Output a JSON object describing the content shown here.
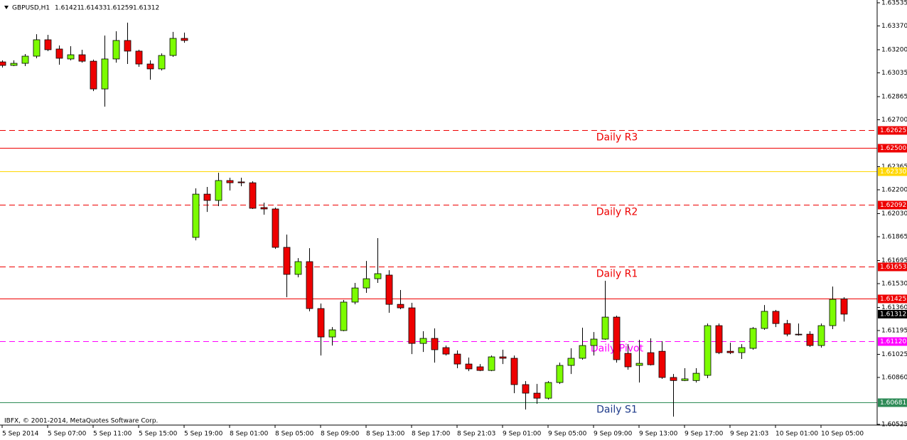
{
  "chart_data": {
    "type": "candlestick",
    "symbol": "GBPUSD,H1",
    "copyright": "IBFX, © 2001-2014, MetaQuotes Software Corp.",
    "categories": [
      "5 Sep 2014",
      null,
      null,
      null,
      "5 Sep 07:00",
      null,
      null,
      null,
      "5 Sep 11:00",
      null,
      null,
      null,
      "5 Sep 15:00",
      null,
      null,
      null,
      "5 Sep 19:00",
      null,
      null,
      null,
      "8 Sep 01:00",
      null,
      null,
      null,
      "8 Sep 05:00",
      null,
      null,
      null,
      "8 Sep 09:00",
      null,
      null,
      null,
      "8 Sep 13:00",
      null,
      null,
      null,
      "8 Sep 17:00",
      null,
      null,
      null,
      "8 Sep 21:03",
      null,
      null,
      null,
      "9 Sep 01:00",
      null,
      null,
      null,
      "9 Sep 05:00",
      null,
      null,
      null,
      "9 Sep 09:00",
      null,
      null,
      null,
      "9 Sep 13:00",
      null,
      null,
      null,
      "9 Sep 17:00",
      null,
      null,
      null,
      "9 Sep 21:03",
      null,
      null,
      null,
      "10 Sep 01:00",
      null,
      null,
      null,
      "10 Sep 05:00",
      null,
      null
    ],
    "open": [
      1.63113,
      1.63088,
      1.63103,
      1.63154,
      1.63271,
      1.63205,
      1.63134,
      1.63164,
      1.63118,
      1.6292,
      1.63134,
      1.63266,
      1.6319,
      1.63098,
      1.63063,
      1.63159,
      1.63281,
      1.6186,
      1.62169,
      1.62124,
      1.62266,
      1.62256,
      1.6225,
      1.62073,
      1.62063,
      1.61789,
      1.61596,
      1.61687,
      1.61352,
      1.61149,
      1.61195,
      1.61398,
      1.61499,
      1.61565,
      1.61591,
      1.61382,
      1.61357,
      1.61103,
      1.61139,
      1.61073,
      1.61027,
      1.60956,
      1.60936,
      1.6091,
      1.61007,
      1.60997,
      1.60809,
      1.60748,
      1.60712,
      1.60824,
      1.60946,
      1.60997,
      1.61088,
      1.61134,
      1.61291,
      1.61032,
      1.60946,
      1.61037,
      1.61047,
      1.6086,
      1.60838,
      1.60838,
      1.60875,
      1.6123,
      1.61047,
      1.61037,
      1.61068,
      1.6121,
      1.61332,
      1.61245,
      1.61169,
      1.61169,
      1.61088,
      1.6123,
      1.61421
    ],
    "high": [
      1.63124,
      1.63124,
      1.63169,
      1.63311,
      1.63306,
      1.6323,
      1.63225,
      1.632,
      1.63129,
      1.63301,
      1.63332,
      1.63393,
      1.632,
      1.63124,
      1.63174,
      1.63327,
      1.63322,
      1.6221,
      1.6222,
      1.62322,
      1.62286,
      1.62286,
      1.62261,
      1.62108,
      1.62073,
      1.6188,
      1.61712,
      1.61783,
      1.61388,
      1.6122,
      1.61413,
      1.61535,
      1.61692,
      1.61855,
      1.61626,
      1.61484,
      1.61393,
      1.6119,
      1.6121,
      1.61088,
      1.61053,
      1.61002,
      1.60956,
      1.61017,
      1.61058,
      1.61017,
      1.60834,
      1.60814,
      1.60834,
      1.60966,
      1.61068,
      1.61215,
      1.61184,
      1.6155,
      1.61301,
      1.61098,
      1.61129,
      1.61139,
      1.61119,
      1.60885,
      1.60926,
      1.60926,
      1.61245,
      1.61245,
      1.61108,
      1.61098,
      1.6122,
      1.61377,
      1.61342,
      1.61271,
      1.61245,
      1.6119,
      1.61245,
      1.61509,
      1.61433
    ],
    "low": [
      1.63073,
      1.63083,
      1.63083,
      1.63139,
      1.6319,
      1.63093,
      1.63124,
      1.63108,
      1.62905,
      1.62794,
      1.63108,
      1.63098,
      1.63078,
      1.62986,
      1.63052,
      1.63149,
      1.6325,
      1.61839,
      1.62042,
      1.62083,
      1.62195,
      1.62225,
      1.62063,
      1.62022,
      1.61778,
      1.61433,
      1.61575,
      1.61332,
      1.61017,
      1.61088,
      1.6119,
      1.61382,
      1.61464,
      1.61535,
      1.61322,
      1.61347,
      1.61027,
      1.61042,
      1.60966,
      1.61017,
      1.60926,
      1.60905,
      1.60905,
      1.60905,
      1.60956,
      1.60748,
      1.60631,
      1.60672,
      1.60702,
      1.60814,
      1.60885,
      1.60987,
      1.61017,
      1.61129,
      1.60966,
      1.60915,
      1.60824,
      1.60946,
      1.6085,
      1.6058,
      1.60834,
      1.60824,
      1.60855,
      1.61027,
      1.61027,
      1.60992,
      1.61058,
      1.612,
      1.6122,
      1.61154,
      1.61159,
      1.61078,
      1.61073,
      1.61205,
      1.61259
    ],
    "close": [
      1.63088,
      1.63103,
      1.63154,
      1.63271,
      1.632,
      1.63139,
      1.63164,
      1.63118,
      1.6292,
      1.63134,
      1.63266,
      1.6319,
      1.63098,
      1.63063,
      1.63159,
      1.63281,
      1.63266,
      1.62169,
      1.62124,
      1.62266,
      1.6225,
      1.6225,
      1.62068,
      1.62063,
      1.61789,
      1.61596,
      1.61687,
      1.61352,
      1.61149,
      1.612,
      1.61398,
      1.61499,
      1.61565,
      1.61601,
      1.61382,
      1.61357,
      1.61103,
      1.61139,
      1.61058,
      1.61027,
      1.60956,
      1.60921,
      1.6091,
      1.61007,
      1.60997,
      1.60809,
      1.60748,
      1.60712,
      1.60824,
      1.60946,
      1.60997,
      1.61088,
      1.61134,
      1.61291,
      1.60987,
      1.60936,
      1.60961,
      1.60951,
      1.6086,
      1.60838,
      1.6085,
      1.6089,
      1.6123,
      1.61037,
      1.61037,
      1.61073,
      1.6121,
      1.61332,
      1.61245,
      1.61169,
      1.61164,
      1.61088,
      1.6123,
      1.61418,
      1.61312
    ],
    "up_color": "#7cfc00",
    "down_color": "#ee0000",
    "ylim": [
      1.6052,
      1.63555
    ],
    "yticks": [
      1.63535,
      {
        "value": 1.6337,
        "label": "1.63370"
      },
      {
        "value": 1.632,
        "label": "1.63200"
      },
      1.63035,
      1.62865,
      {
        "value": 1.627,
        "label": "1.62700"
      },
      1.62365,
      {
        "value": 1.622,
        "label": "1.62200"
      },
      {
        "value": 1.6203,
        "label": "1.62030"
      },
      1.61865,
      1.61695,
      {
        "value": 1.6153,
        "label": "1.61530"
      },
      {
        "value": 1.6136,
        "label": "1.61360"
      },
      1.61195,
      1.61025,
      {
        "value": 1.6086,
        "label": "1.60860"
      },
      1.60525
    ],
    "levels": [
      {
        "value": 1.62625,
        "color": "#ee0000",
        "dashed": true,
        "name": "Daily R3"
      },
      {
        "value": 1.625,
        "label": "1.62500",
        "color": "#ee0000",
        "dashed": false
      },
      {
        "value": 1.6233,
        "label": "1.62330",
        "color": "#ffd700",
        "dashed": false
      },
      {
        "value": 1.62092,
        "color": "#ee0000",
        "dashed": true,
        "name": "Daily R2"
      },
      {
        "value": 1.61653,
        "color": "#ee0000",
        "dashed": true,
        "name": "Daily R1"
      },
      {
        "value": 1.61425,
        "color": "#ee0000",
        "dashed": false
      },
      {
        "value": 1.6112,
        "label": "1.61120",
        "color": "#ff00ff",
        "dashed": true,
        "name": "Daily Pivot"
      },
      {
        "value": 1.60681,
        "color": "#2e8b57",
        "dashed": false,
        "name": "Daily S1",
        "name_color": "#1e3a8a"
      }
    ],
    "current_price": 1.61312,
    "grid": false
  }
}
